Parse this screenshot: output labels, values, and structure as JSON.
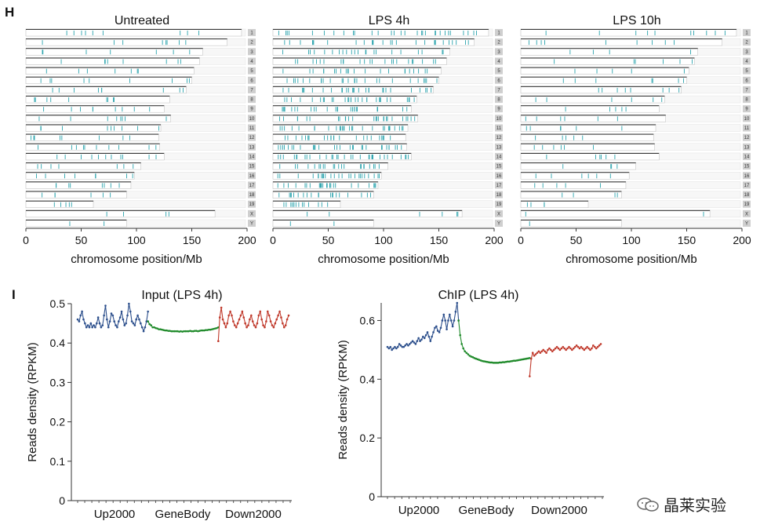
{
  "panel_h": {
    "letter": "H",
    "xlabel": "chromosome position/Mb",
    "xticks": [
      0,
      50,
      100,
      150,
      200
    ],
    "chromosomes": [
      "1",
      "2",
      "3",
      "4",
      "5",
      "6",
      "7",
      "8",
      "9",
      "10",
      "11",
      "12",
      "13",
      "14",
      "15",
      "16",
      "17",
      "18",
      "19",
      "X",
      "Y"
    ],
    "chromosome_lengths_mb": [
      195,
      182,
      160,
      157,
      152,
      150,
      145,
      130,
      125,
      131,
      122,
      120,
      121,
      125,
      104,
      98,
      95,
      91,
      61,
      171,
      91
    ],
    "panels": [
      {
        "title": "Untreated",
        "density": [
          9,
          8,
          7,
          8,
          7,
          9,
          9,
          10,
          9,
          8,
          9,
          8,
          10,
          11,
          7,
          8,
          8,
          6,
          5,
          4,
          2
        ]
      },
      {
        "title": "LPS 4h",
        "density": [
          30,
          28,
          22,
          24,
          22,
          26,
          28,
          30,
          24,
          26,
          28,
          25,
          30,
          32,
          22,
          26,
          26,
          20,
          14,
          6,
          2
        ]
      },
      {
        "title": "LPS 10h",
        "density": [
          10,
          9,
          4,
          6,
          5,
          7,
          8,
          6,
          5,
          6,
          6,
          5,
          6,
          6,
          4,
          6,
          5,
          4,
          4,
          2,
          1
        ]
      }
    ]
  },
  "panel_i": {
    "letter": "I",
    "chart_data": [
      {
        "type": "line",
        "title": "Input (LPS 4h)",
        "ylabel": "Reads density (RPKM)",
        "ylim": [
          0,
          0.5
        ],
        "yticks": [
          "0",
          "0.1",
          "0.2",
          "0.3",
          "0.4",
          "0.5"
        ],
        "ytick_values": [
          0,
          0.1,
          0.2,
          0.3,
          0.4,
          0.5
        ],
        "xlabels": [
          "Up2000",
          "GeneBody",
          "Down2000"
        ],
        "series": [
          {
            "name": "Up2000",
            "color": "#2c4f8c",
            "values": [
              0.46,
              0.455,
              0.47,
              0.48,
              0.46,
              0.45,
              0.44,
              0.445,
              0.44,
              0.45,
              0.44,
              0.445,
              0.44,
              0.45,
              0.465,
              0.45,
              0.44,
              0.445,
              0.47,
              0.495,
              0.46,
              0.44,
              0.455,
              0.475,
              0.47,
              0.455,
              0.445,
              0.44,
              0.455,
              0.465,
              0.48,
              0.46,
              0.445,
              0.45,
              0.47,
              0.5,
              0.48,
              0.455,
              0.45,
              0.445,
              0.46,
              0.47,
              0.46,
              0.45,
              0.44,
              0.43,
              0.44,
              0.455,
              0.48
            ]
          },
          {
            "name": "GeneBody",
            "color": "#1f8a2a",
            "values": [
              0.455,
              0.448,
              0.445,
              0.44,
              0.44,
              0.438,
              0.437,
              0.435,
              0.435,
              0.434,
              0.433,
              0.432,
              0.432,
              0.431,
              0.431,
              0.43,
              0.43,
              0.43,
              0.43,
              0.43,
              0.429,
              0.43,
              0.429,
              0.43,
              0.43,
              0.43,
              0.43,
              0.431,
              0.43,
              0.43,
              0.431,
              0.431,
              0.43,
              0.431,
              0.432,
              0.432,
              0.432,
              0.433,
              0.433,
              0.434,
              0.434,
              0.435,
              0.436,
              0.437,
              0.438,
              0.44
            ]
          },
          {
            "name": "Down2000",
            "color": "#c0392b",
            "values": [
              0.405,
              0.465,
              0.49,
              0.46,
              0.45,
              0.44,
              0.45,
              0.47,
              0.48,
              0.47,
              0.455,
              0.445,
              0.44,
              0.45,
              0.46,
              0.47,
              0.48,
              0.465,
              0.45,
              0.44,
              0.445,
              0.46,
              0.47,
              0.455,
              0.445,
              0.44,
              0.45,
              0.47,
              0.48,
              0.46,
              0.445,
              0.44,
              0.455,
              0.48,
              0.47,
              0.455,
              0.445,
              0.44,
              0.45,
              0.46,
              0.47,
              0.48,
              0.465,
              0.45,
              0.44,
              0.445,
              0.46,
              0.47
            ]
          }
        ]
      },
      {
        "type": "line",
        "title": "ChIP (LPS 4h)",
        "ylabel": "Reads density (RPKM)",
        "ylim": [
          0,
          0.66
        ],
        "yticks": [
          "0",
          "0.2",
          "0.4",
          "0.6"
        ],
        "ytick_values": [
          0,
          0.2,
          0.4,
          0.6
        ],
        "xlabels": [
          "Up2000",
          "GeneBody",
          "Down2000"
        ],
        "series": [
          {
            "name": "Up2000",
            "color": "#2c4f8c",
            "values": [
              0.51,
              0.505,
              0.51,
              0.5,
              0.505,
              0.51,
              0.505,
              0.51,
              0.52,
              0.515,
              0.51,
              0.51,
              0.515,
              0.52,
              0.515,
              0.52,
              0.525,
              0.53,
              0.525,
              0.52,
              0.53,
              0.54,
              0.53,
              0.535,
              0.545,
              0.54,
              0.55,
              0.56,
              0.545,
              0.53,
              0.545,
              0.56,
              0.575,
              0.58,
              0.565,
              0.56,
              0.575,
              0.6,
              0.62,
              0.6,
              0.57,
              0.6,
              0.62,
              0.6,
              0.58,
              0.6,
              0.63,
              0.66,
              0.6
            ]
          },
          {
            "name": "GeneBody",
            "color": "#1f8a2a",
            "values": [
              0.6,
              0.55,
              0.52,
              0.505,
              0.495,
              0.49,
              0.485,
              0.48,
              0.477,
              0.475,
              0.472,
              0.47,
              0.468,
              0.466,
              0.464,
              0.462,
              0.461,
              0.46,
              0.459,
              0.458,
              0.457,
              0.457,
              0.456,
              0.456,
              0.456,
              0.456,
              0.457,
              0.457,
              0.458,
              0.458,
              0.459,
              0.46,
              0.46,
              0.461,
              0.462,
              0.463,
              0.463,
              0.464,
              0.465,
              0.466,
              0.467,
              0.468,
              0.469,
              0.47,
              0.471,
              0.472
            ]
          },
          {
            "name": "Down2000",
            "color": "#c0392b",
            "values": [
              0.41,
              0.47,
              0.49,
              0.48,
              0.485,
              0.49,
              0.495,
              0.49,
              0.495,
              0.5,
              0.495,
              0.49,
              0.5,
              0.505,
              0.5,
              0.495,
              0.5,
              0.505,
              0.51,
              0.505,
              0.5,
              0.505,
              0.51,
              0.505,
              0.5,
              0.505,
              0.51,
              0.505,
              0.5,
              0.505,
              0.51,
              0.515,
              0.51,
              0.505,
              0.51,
              0.505,
              0.5,
              0.505,
              0.51,
              0.505,
              0.5,
              0.505,
              0.515,
              0.51,
              0.505,
              0.51,
              0.515,
              0.52
            ]
          }
        ]
      }
    ]
  },
  "watermark": {
    "text": "晶莱实验",
    "icon": "wechat-icon"
  }
}
